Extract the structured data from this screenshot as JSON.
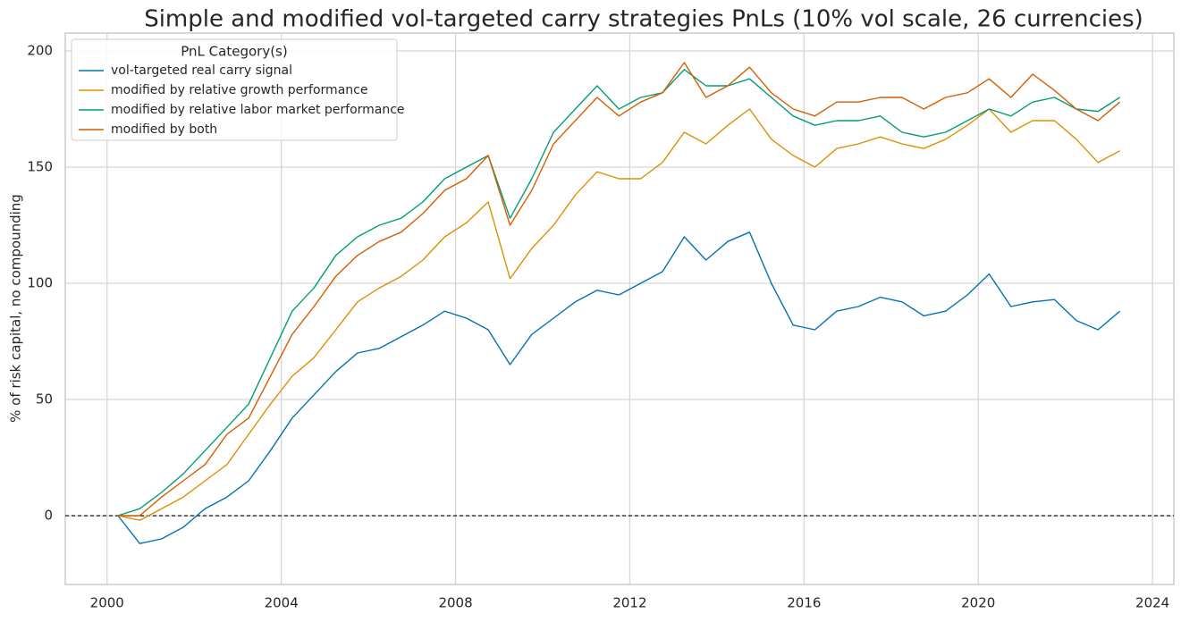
{
  "chart_data": {
    "type": "line",
    "title": "Simple and modified vol-targeted carry strategies PnLs (10% vol scale, 26 currencies)",
    "y_label": "% of risk capital, no compounding",
    "legend_title": "PnL Category(s)",
    "legend_position": "upper left",
    "grid": true,
    "x": [
      2000.25,
      2000.75,
      2001.25,
      2001.75,
      2002.25,
      2002.75,
      2003.25,
      2003.75,
      2004.25,
      2004.75,
      2005.25,
      2005.75,
      2006.25,
      2006.75,
      2007.25,
      2007.75,
      2008.25,
      2008.75,
      2009.25,
      2009.75,
      2010.25,
      2010.75,
      2011.25,
      2011.75,
      2012.25,
      2012.75,
      2013.25,
      2013.75,
      2014.25,
      2014.75,
      2015.25,
      2015.75,
      2016.25,
      2016.75,
      2017.25,
      2017.75,
      2018.25,
      2018.75,
      2019.25,
      2019.75,
      2020.25,
      2020.75,
      2021.25,
      2021.75,
      2022.25,
      2022.75,
      2023.25
    ],
    "series": [
      {
        "name": "vol-targeted real carry signal",
        "color": "#0173b2",
        "values": [
          0,
          -12,
          -10,
          -5,
          3,
          8,
          15,
          28,
          42,
          52,
          62,
          70,
          72,
          77,
          82,
          88,
          85,
          80,
          65,
          78,
          85,
          92,
          97,
          95,
          100,
          105,
          120,
          110,
          118,
          122,
          100,
          82,
          80,
          88,
          90,
          94,
          92,
          86,
          88,
          95,
          104,
          90,
          92,
          93,
          84,
          80,
          88
        ]
      },
      {
        "name": "modified by relative growth performance",
        "color": "#de8f05",
        "values": [
          0,
          -2,
          3,
          8,
          15,
          22,
          35,
          48,
          60,
          68,
          80,
          92,
          98,
          103,
          110,
          120,
          126,
          135,
          102,
          115,
          125,
          138,
          148,
          145,
          145,
          152,
          165,
          160,
          168,
          175,
          162,
          155,
          150,
          158,
          160,
          163,
          160,
          158,
          162,
          168,
          175,
          165,
          170,
          170,
          162,
          152,
          157
        ]
      },
      {
        "name": "modified by relative labor market performance",
        "color": "#029e73",
        "values": [
          0,
          3,
          10,
          18,
          28,
          38,
          48,
          68,
          88,
          98,
          112,
          120,
          125,
          128,
          135,
          145,
          150,
          155,
          128,
          145,
          165,
          175,
          185,
          175,
          180,
          182,
          192,
          185,
          185,
          188,
          180,
          172,
          168,
          170,
          170,
          172,
          165,
          163,
          165,
          170,
          175,
          172,
          178,
          180,
          175,
          174,
          180
        ]
      },
      {
        "name": "modified by both",
        "color": "#d55e00",
        "values": [
          0,
          0,
          8,
          15,
          22,
          35,
          42,
          60,
          78,
          90,
          103,
          112,
          118,
          122,
          130,
          140,
          145,
          155,
          125,
          140,
          160,
          170,
          180,
          172,
          178,
          182,
          195,
          180,
          185,
          193,
          182,
          175,
          172,
          178,
          178,
          180,
          180,
          175,
          180,
          182,
          188,
          180,
          190,
          183,
          175,
          170,
          178
        ]
      }
    ],
    "xlim": [
      1999.04,
      2024.49
    ],
    "xticks": [
      2000,
      2004,
      2008,
      2012,
      2016,
      2020,
      2024
    ],
    "ylim": [
      -29.6,
      207.7
    ],
    "yticks": [
      0,
      50,
      100,
      150,
      200
    ]
  }
}
